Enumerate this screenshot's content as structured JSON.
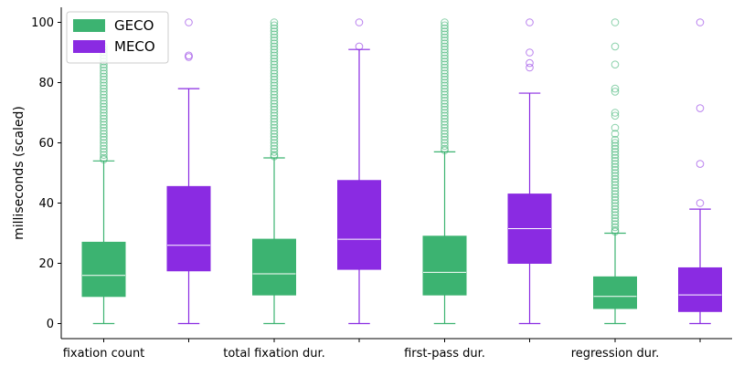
{
  "chart_data": {
    "type": "box",
    "ylabel": "milliseconds (scaled)",
    "ylim": [
      -5,
      105
    ],
    "yticks": [
      "0",
      "20",
      "40",
      "60",
      "80",
      "100"
    ],
    "legend_position": "top-left",
    "categories": [
      "fixation count",
      "total fixation dur.",
      "first-pass dur.",
      "regression dur."
    ],
    "colors": {
      "GECO": "#3cb371",
      "MECO": "#8a2be2"
    },
    "series": [
      {
        "name": "GECO",
        "boxes": [
          {
            "whisker_low": 0,
            "q1": 9,
            "median": 16,
            "q3": 27,
            "whisker_high": 54,
            "outliers": [
              54.5,
              55,
              56,
              57,
              58,
              59,
              60,
              61,
              62,
              63,
              64,
              65,
              66,
              67,
              68,
              69,
              70,
              71,
              72,
              73,
              74,
              75,
              76,
              77,
              78,
              79,
              80,
              81,
              82,
              83,
              84,
              85,
              86,
              87,
              88,
              89,
              90,
              91,
              92
            ]
          },
          {
            "whisker_low": 0,
            "q1": 9.5,
            "median": 16.5,
            "q3": 28,
            "whisker_high": 55,
            "outliers": [
              55.5,
              56,
              57,
              58,
              59,
              60,
              61,
              62,
              63,
              64,
              65,
              66,
              67,
              68,
              69,
              70,
              71,
              72,
              73,
              74,
              75,
              76,
              77,
              78,
              79,
              80,
              81,
              82,
              83,
              84,
              85,
              86,
              87,
              88,
              89,
              90,
              91,
              92,
              93,
              94,
              95,
              96,
              97,
              98,
              99,
              100
            ]
          },
          {
            "whisker_low": 0,
            "q1": 9.5,
            "median": 17,
            "q3": 29,
            "whisker_high": 57,
            "outliers": [
              57.5,
              58,
              59,
              60,
              61,
              62,
              63,
              64,
              65,
              66,
              67,
              68,
              69,
              70,
              71,
              72,
              73,
              74,
              75,
              76,
              77,
              78,
              79,
              80,
              81,
              82,
              83,
              84,
              85,
              86,
              87,
              88,
              89,
              90,
              91,
              92,
              93,
              94,
              95,
              96,
              97,
              98,
              99,
              100
            ]
          },
          {
            "whisker_low": 0,
            "q1": 5,
            "median": 9,
            "q3": 15.5,
            "whisker_high": 30,
            "outliers": [
              30.5,
              31,
              32,
              33,
              34,
              35,
              36,
              37,
              38,
              39,
              40,
              41,
              42,
              43,
              44,
              45,
              46,
              47,
              48,
              49,
              50,
              51,
              52,
              53,
              54,
              55,
              56,
              57,
              58,
              59,
              60,
              61,
              63,
              65,
              69,
              70,
              77,
              78,
              86,
              92,
              100
            ]
          }
        ]
      },
      {
        "name": "MECO",
        "boxes": [
          {
            "whisker_low": 0,
            "q1": 17.5,
            "median": 26,
            "q3": 45.5,
            "whisker_high": 78,
            "outliers": [
              88.5,
              89,
              100
            ]
          },
          {
            "whisker_low": 0,
            "q1": 18,
            "median": 28,
            "q3": 47.5,
            "whisker_high": 91,
            "outliers": [
              92,
              100
            ]
          },
          {
            "whisker_low": 0,
            "q1": 20,
            "median": 31.5,
            "q3": 43,
            "whisker_high": 76.5,
            "outliers": [
              85,
              86.5,
              90,
              100
            ]
          },
          {
            "whisker_low": 0,
            "q1": 4,
            "median": 9.5,
            "q3": 18.5,
            "whisker_high": 38,
            "outliers": [
              40,
              53,
              71.5,
              100
            ]
          }
        ]
      }
    ]
  }
}
